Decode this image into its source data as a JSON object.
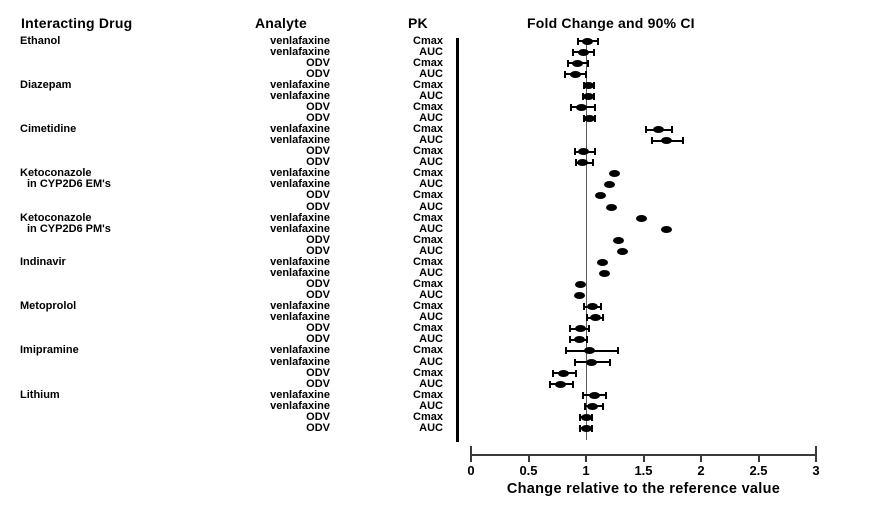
{
  "header": {
    "drug_col": "Interacting Drug",
    "analyte_col": "Analyte",
    "pk_col": "PK",
    "plot_col": "Fold Change and 90% CI"
  },
  "colors": {
    "marker": "#000000",
    "reference_line": "#5a5a5a",
    "axis": "#3a3a3a",
    "background": "#ffffff"
  },
  "chart_data": {
    "type": "scatter",
    "subtype": "forest-plot",
    "title": "Fold Change and 90% CI",
    "xlabel": "Change relative to the reference value",
    "xlim": [
      0,
      3
    ],
    "xticks": [
      "0",
      "0.5",
      "1",
      "1.5",
      "2",
      "2.5",
      "3"
    ],
    "xtick_values": [
      0,
      0.5,
      1,
      1.5,
      2,
      2.5,
      3
    ],
    "reference_line": 1,
    "grid": false,
    "rows": [
      {
        "drug": "Ethanol",
        "indent": false,
        "analyte": "venlafaxine",
        "pk": "Cmax",
        "est": 1.01,
        "lo": 0.93,
        "hi": 1.1
      },
      {
        "drug": "",
        "indent": false,
        "analyte": "venlafaxine",
        "pk": "AUC",
        "est": 0.98,
        "lo": 0.89,
        "hi": 1.07
      },
      {
        "drug": "",
        "indent": false,
        "analyte": "ODV",
        "pk": "Cmax",
        "est": 0.93,
        "lo": 0.84,
        "hi": 1.02
      },
      {
        "drug": "",
        "indent": false,
        "analyte": "ODV",
        "pk": "AUC",
        "est": 0.91,
        "lo": 0.82,
        "hi": 1.0
      },
      {
        "drug": "Diazepam",
        "indent": false,
        "analyte": "venlafaxine",
        "pk": "Cmax",
        "est": 1.02,
        "lo": 0.98,
        "hi": 1.07
      },
      {
        "drug": "",
        "indent": false,
        "analyte": "venlafaxine",
        "pk": "AUC",
        "est": 1.02,
        "lo": 0.97,
        "hi": 1.07
      },
      {
        "drug": "",
        "indent": false,
        "analyte": "ODV",
        "pk": "Cmax",
        "est": 0.96,
        "lo": 0.87,
        "hi": 1.08
      },
      {
        "drug": "",
        "indent": false,
        "analyte": "ODV",
        "pk": "AUC",
        "est": 1.03,
        "lo": 0.98,
        "hi": 1.08
      },
      {
        "drug": "Cimetidine",
        "indent": false,
        "analyte": "venlafaxine",
        "pk": "Cmax",
        "est": 1.63,
        "lo": 1.52,
        "hi": 1.75
      },
      {
        "drug": "",
        "indent": false,
        "analyte": "venlafaxine",
        "pk": "AUC",
        "est": 1.7,
        "lo": 1.57,
        "hi": 1.84
      },
      {
        "drug": "",
        "indent": false,
        "analyte": "ODV",
        "pk": "Cmax",
        "est": 0.98,
        "lo": 0.9,
        "hi": 1.08
      },
      {
        "drug": "",
        "indent": false,
        "analyte": "ODV",
        "pk": "AUC",
        "est": 0.97,
        "lo": 0.91,
        "hi": 1.06
      },
      {
        "drug": "Ketoconazole",
        "indent": false,
        "analyte": "venlafaxine",
        "pk": "Cmax",
        "est": 1.25,
        "lo": null,
        "hi": null
      },
      {
        "drug": "in CYP2D6 EM's",
        "indent": true,
        "analyte": "venlafaxine",
        "pk": "AUC",
        "est": 1.2,
        "lo": null,
        "hi": null
      },
      {
        "drug": "",
        "indent": false,
        "analyte": "ODV",
        "pk": "Cmax",
        "est": 1.13,
        "lo": null,
        "hi": null
      },
      {
        "drug": "",
        "indent": false,
        "analyte": "ODV",
        "pk": "AUC",
        "est": 1.22,
        "lo": null,
        "hi": null
      },
      {
        "drug": "Ketoconazole",
        "indent": false,
        "analyte": "venlafaxine",
        "pk": "Cmax",
        "est": 1.48,
        "lo": null,
        "hi": null
      },
      {
        "drug": "in CYP2D6 PM's",
        "indent": true,
        "analyte": "venlafaxine",
        "pk": "AUC",
        "est": 1.7,
        "lo": null,
        "hi": null
      },
      {
        "drug": "",
        "indent": false,
        "analyte": "ODV",
        "pk": "Cmax",
        "est": 1.28,
        "lo": null,
        "hi": null
      },
      {
        "drug": "",
        "indent": false,
        "analyte": "ODV",
        "pk": "AUC",
        "est": 1.32,
        "lo": null,
        "hi": null
      },
      {
        "drug": "Indinavir",
        "indent": false,
        "analyte": "venlafaxine",
        "pk": "Cmax",
        "est": 1.14,
        "lo": null,
        "hi": null
      },
      {
        "drug": "",
        "indent": false,
        "analyte": "venlafaxine",
        "pk": "AUC",
        "est": 1.16,
        "lo": null,
        "hi": null
      },
      {
        "drug": "",
        "indent": false,
        "analyte": "ODV",
        "pk": "Cmax",
        "est": 0.95,
        "lo": null,
        "hi": null
      },
      {
        "drug": "",
        "indent": false,
        "analyte": "ODV",
        "pk": "AUC",
        "est": 0.94,
        "lo": null,
        "hi": null
      },
      {
        "drug": "Metoprolol",
        "indent": false,
        "analyte": "venlafaxine",
        "pk": "Cmax",
        "est": 1.06,
        "lo": 0.98,
        "hi": 1.13
      },
      {
        "drug": "",
        "indent": false,
        "analyte": "venlafaxine",
        "pk": "AUC",
        "est": 1.08,
        "lo": 1.01,
        "hi": 1.15
      },
      {
        "drug": "",
        "indent": false,
        "analyte": "ODV",
        "pk": "Cmax",
        "est": 0.95,
        "lo": 0.86,
        "hi": 1.03
      },
      {
        "drug": "",
        "indent": false,
        "analyte": "ODV",
        "pk": "AUC",
        "est": 0.94,
        "lo": 0.86,
        "hi": 1.01
      },
      {
        "drug": "Imipramine",
        "indent": false,
        "analyte": "venlafaxine",
        "pk": "Cmax",
        "est": 1.03,
        "lo": 0.83,
        "hi": 1.28
      },
      {
        "drug": "",
        "indent": false,
        "analyte": "venlafaxine",
        "pk": "AUC",
        "est": 1.05,
        "lo": 0.9,
        "hi": 1.21
      },
      {
        "drug": "",
        "indent": false,
        "analyte": "ODV",
        "pk": "Cmax",
        "est": 0.8,
        "lo": 0.71,
        "hi": 0.91
      },
      {
        "drug": "",
        "indent": false,
        "analyte": "ODV",
        "pk": "AUC",
        "est": 0.78,
        "lo": 0.69,
        "hi": 0.89
      },
      {
        "drug": "Lithium",
        "indent": false,
        "analyte": "venlafaxine",
        "pk": "Cmax",
        "est": 1.07,
        "lo": 0.97,
        "hi": 1.17
      },
      {
        "drug": "",
        "indent": false,
        "analyte": "venlafaxine",
        "pk": "AUC",
        "est": 1.06,
        "lo": 0.99,
        "hi": 1.15
      },
      {
        "drug": "",
        "indent": false,
        "analyte": "ODV",
        "pk": "Cmax",
        "est": 1.0,
        "lo": 0.95,
        "hi": 1.05
      },
      {
        "drug": "",
        "indent": false,
        "analyte": "ODV",
        "pk": "AUC",
        "est": 1.0,
        "lo": 0.95,
        "hi": 1.05
      }
    ]
  }
}
